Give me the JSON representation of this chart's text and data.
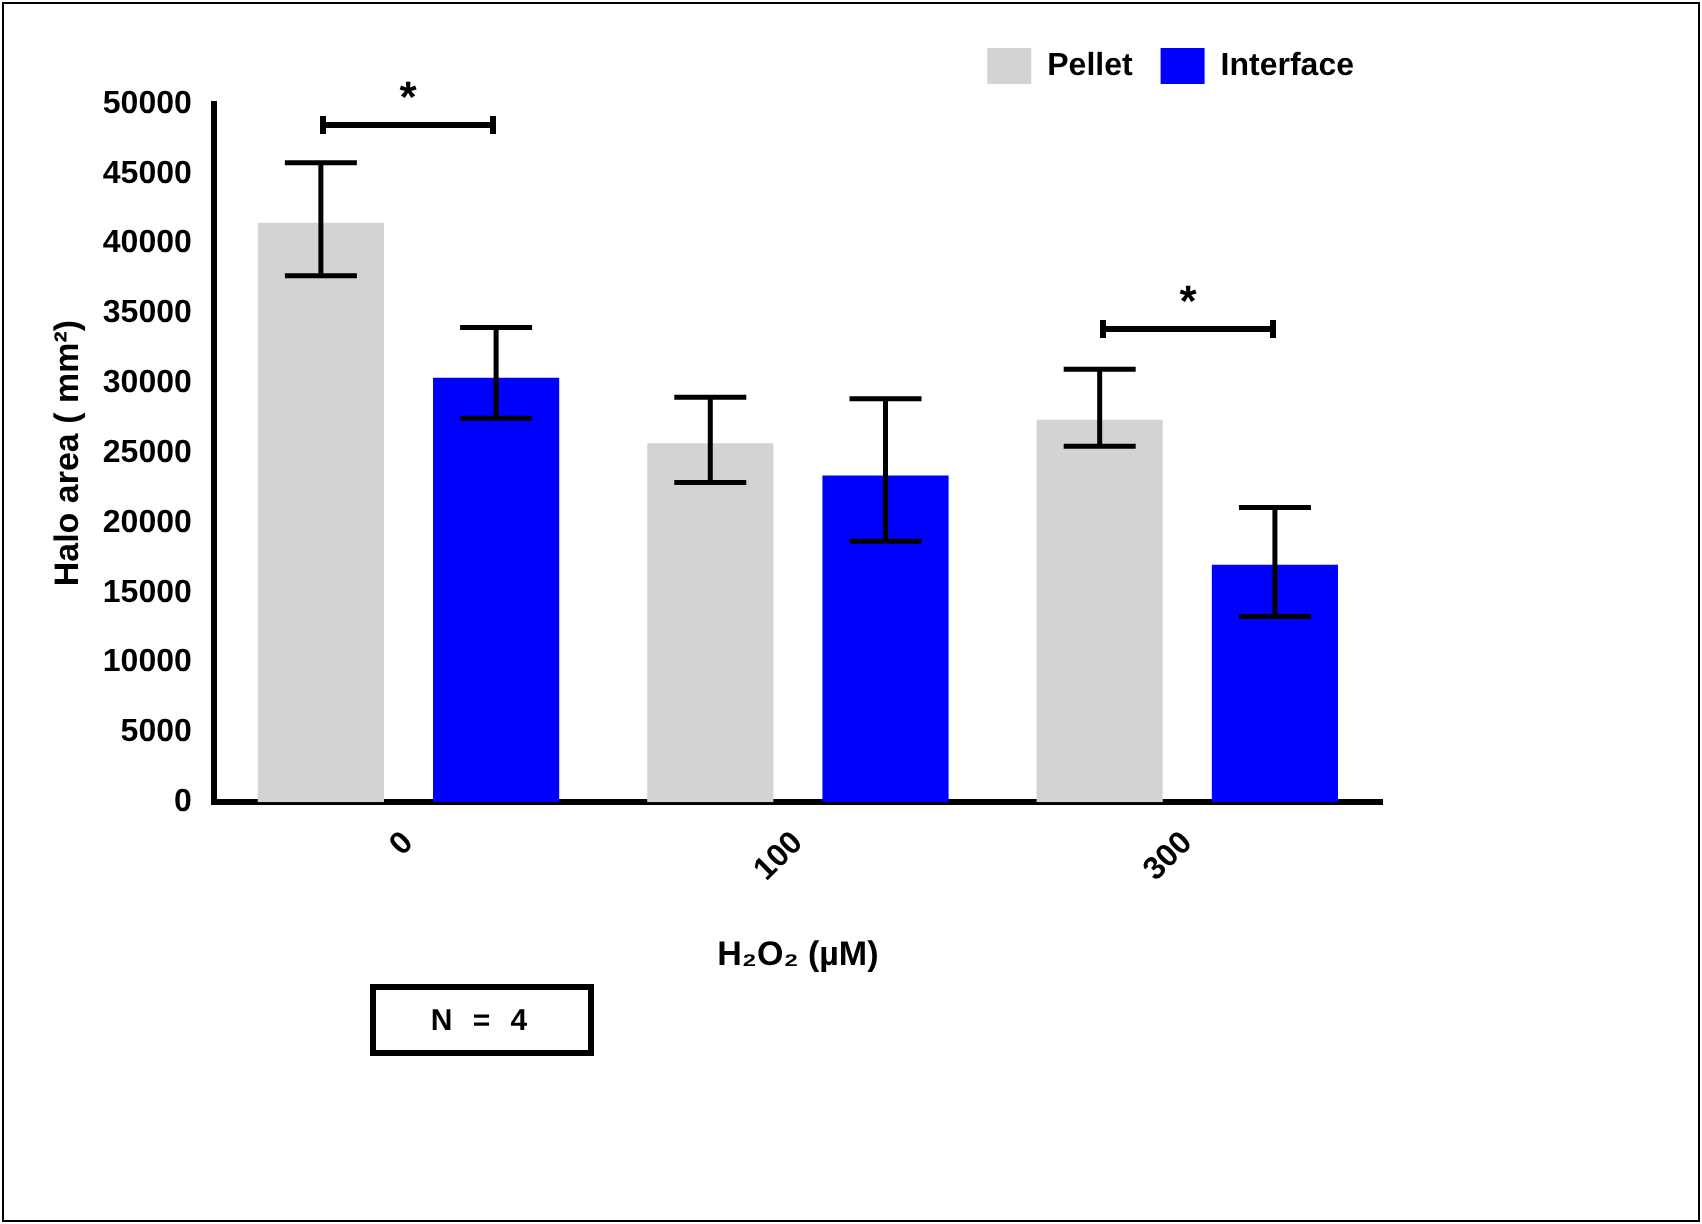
{
  "chart_data": {
    "type": "bar",
    "xlabel": "H₂O₂ (µM)",
    "ylabel": "Halo area ( mm²)",
    "categories": [
      "0",
      "100",
      "300"
    ],
    "series": [
      {
        "name": "Pellet",
        "color": "#d3d3d3",
        "values": [
          41500,
          25700,
          27400
        ],
        "errors": [
          [
            37700,
            45800
          ],
          [
            22900,
            29000
          ],
          [
            25500,
            31000
          ]
        ]
      },
      {
        "name": "Interface",
        "color": "#0000ff",
        "values": [
          30400,
          23400,
          17000
        ],
        "errors": [
          [
            27500,
            34000
          ],
          [
            18700,
            28900
          ],
          [
            13300,
            21100
          ]
        ]
      }
    ],
    "ylim": [
      0,
      50000
    ],
    "yticks": [
      0,
      5000,
      10000,
      15000,
      20000,
      25000,
      30000,
      35000,
      40000,
      45000,
      50000
    ],
    "grid": false,
    "legend": "top right",
    "annotations": [
      "*",
      "*",
      "N = 4"
    ]
  }
}
